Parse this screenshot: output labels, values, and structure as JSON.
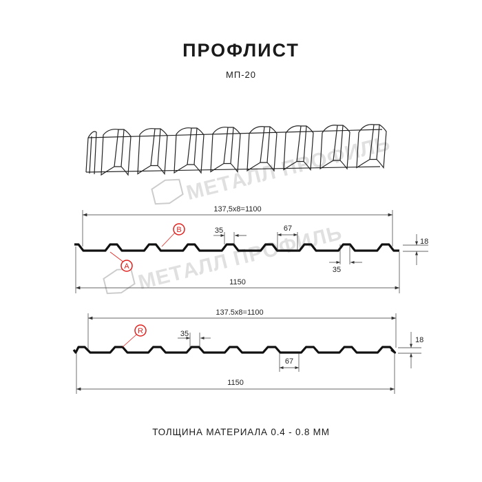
{
  "header": {
    "title": "ПРОФЛИСТ",
    "subtitle": "МП-20"
  },
  "watermark": {
    "text": "МЕТАЛЛ ПРОФИЛЬ",
    "color": "#c8c8c8"
  },
  "profile_1": {
    "total_dim": "137,5x8=1100",
    "width_dim": "1150",
    "top_dim": "35",
    "bottom_top_dim": "35",
    "valley_dim": "67",
    "height_dim": "18",
    "marker_a": "A",
    "marker_b": "B"
  },
  "profile_2": {
    "total_dim": "137.5x8=1100",
    "width_dim": "1150",
    "top_dim": "35",
    "valley_dim": "67",
    "height_dim": "18",
    "marker_r": "R"
  },
  "colors": {
    "line": "#111111",
    "marker": "#e0201c",
    "dim": "#333333"
  },
  "footer": {
    "thickness": "ТОЛЩИНА МАТЕРИАЛА 0.4 - 0.8 ММ"
  }
}
